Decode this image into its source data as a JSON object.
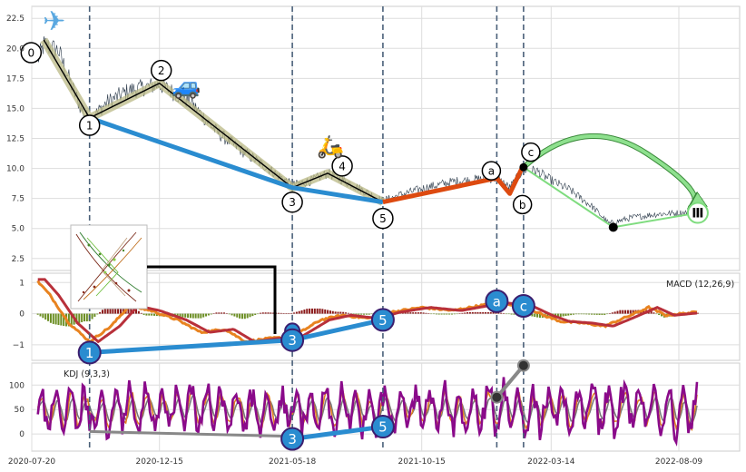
{
  "chart_data": [
    {
      "type": "line",
      "panel": "price",
      "grid": true,
      "x_ticks": [
        "2020-07-20",
        "2020-12-15",
        "2021-05-18",
        "2021-10-15",
        "2022-03-14",
        "2022-08-09"
      ],
      "y_ticks": [
        "2.5",
        "5.0",
        "7.5",
        "10.0",
        "12.5",
        "15.0",
        "17.5",
        "20.0",
        "22.5"
      ],
      "ylim": [
        1.5,
        23.5
      ],
      "start_date": "2020-07-20",
      "end_date": "2022-08-31",
      "marker_dates": [
        "2020-09-25",
        "2021-05-18",
        "2021-08-31",
        "2022-01-10",
        "2022-02-10"
      ],
      "price_keypoints": [
        [
          "2020-07-27",
          19.0
        ],
        [
          "2020-08-03",
          20.3
        ],
        [
          "2020-08-20",
          19.8
        ],
        [
          "2020-09-01",
          17.5
        ],
        [
          "2020-09-15",
          15.0
        ],
        [
          "2020-09-25",
          14.0
        ],
        [
          "2020-10-15",
          15.5
        ],
        [
          "2020-11-10",
          16.5
        ],
        [
          "2020-12-15",
          17.0
        ],
        [
          "2021-01-20",
          15.5
        ],
        [
          "2021-02-20",
          13.0
        ],
        [
          "2021-03-20",
          11.5
        ],
        [
          "2021-04-20",
          10.0
        ],
        [
          "2021-05-18",
          8.6
        ],
        [
          "2021-06-10",
          9.0
        ],
        [
          "2021-06-28",
          9.6
        ],
        [
          "2021-07-25",
          8.7
        ],
        [
          "2021-08-31",
          7.3
        ],
        [
          "2021-09-20",
          7.8
        ],
        [
          "2021-10-20",
          8.4
        ],
        [
          "2021-11-20",
          8.9
        ],
        [
          "2021-12-20",
          9.1
        ],
        [
          "2022-01-10",
          9.2
        ],
        [
          "2022-01-25",
          8.4
        ],
        [
          "2022-02-10",
          9.9
        ],
        [
          "2022-02-25",
          9.8
        ],
        [
          "2022-03-14",
          9.0
        ],
        [
          "2022-04-05",
          8.2
        ],
        [
          "2022-05-01",
          6.8
        ],
        [
          "2022-05-20",
          5.4
        ],
        [
          "2022-06-15",
          5.9
        ],
        [
          "2022-07-15",
          6.2
        ],
        [
          "2022-08-15",
          6.3
        ],
        [
          "2022-08-31",
          6.5
        ]
      ],
      "waves": [
        {
          "label": "0",
          "date": "2020-08-03",
          "value": 20.7
        },
        {
          "label": "1",
          "date": "2020-09-25",
          "value": 14.2
        },
        {
          "label": "2",
          "date": "2020-12-15",
          "value": 17.1
        },
        {
          "label": "3",
          "date": "2021-05-18",
          "value": 8.4
        },
        {
          "label": "4",
          "date": "2021-06-28",
          "value": 9.6
        },
        {
          "label": "5",
          "date": "2021-08-31",
          "value": 7.2
        },
        {
          "label": "a",
          "date": "2022-01-10",
          "value": 9.2
        },
        {
          "label": "b",
          "date": "2022-01-25",
          "value": 7.9
        },
        {
          "label": "c",
          "date": "2022-02-10",
          "value": 10.3
        }
      ],
      "impulse_path": [
        [
          "2020-08-03",
          20.7
        ],
        [
          "2020-09-25",
          14.2
        ],
        [
          "2020-12-15",
          17.1
        ],
        [
          "2021-05-18",
          8.4
        ],
        [
          "2021-06-28",
          9.6
        ],
        [
          "2021-08-31",
          7.2
        ]
      ],
      "trend_line": [
        [
          "2020-09-25",
          14.2
        ],
        [
          "2021-05-18",
          8.4
        ],
        [
          "2021-08-31",
          7.2
        ]
      ],
      "corrective_path": [
        [
          "2021-08-31",
          7.2
        ],
        [
          "2022-01-10",
          9.2
        ],
        [
          "2022-01-25",
          7.9
        ],
        [
          "2022-02-10",
          10.3
        ]
      ],
      "projection": {
        "from": [
          "2022-02-10",
          10.1
        ],
        "low": [
          "2022-05-25",
          5.1
        ],
        "to": [
          "2022-08-31",
          6.3
        ],
        "end_label": "Ⅲ"
      },
      "icons": [
        {
          "name": "airplane-icon",
          "glyph": "✈",
          "color": "#5aa8e0"
        },
        {
          "name": "car-icon",
          "glyph": "🚙",
          "color": "#2e7fd8"
        },
        {
          "name": "scooter-icon",
          "glyph": "🛵",
          "color": "#e07a2e"
        }
      ]
    },
    {
      "type": "line",
      "panel": "macd",
      "title": "MACD (12,26,9)",
      "y_ticks": [
        "1",
        "0",
        "−1"
      ],
      "ylim": [
        -1.5,
        1.3
      ],
      "dif_keypoints": [
        [
          "2020-07-25",
          1.1
        ],
        [
          "2020-08-10",
          0.6
        ],
        [
          "2020-09-01",
          -0.3
        ],
        [
          "2020-09-25",
          -0.9
        ],
        [
          "2020-10-20",
          -0.4
        ],
        [
          "2020-11-10",
          0.25
        ],
        [
          "2020-12-05",
          0.1
        ],
        [
          "2021-01-05",
          -0.2
        ],
        [
          "2021-02-01",
          -0.6
        ],
        [
          "2021-03-01",
          -0.5
        ],
        [
          "2021-03-25",
          -0.9
        ],
        [
          "2021-04-20",
          -0.8
        ],
        [
          "2021-05-18",
          -0.75
        ],
        [
          "2021-06-20",
          -0.2
        ],
        [
          "2021-07-15",
          -0.05
        ],
        [
          "2021-08-15",
          -0.15
        ],
        [
          "2021-09-10",
          0.05
        ],
        [
          "2021-10-15",
          0.2
        ],
        [
          "2021-11-20",
          0.1
        ],
        [
          "2021-12-20",
          0.25
        ],
        [
          "2022-01-10",
          0.35
        ],
        [
          "2022-02-10",
          0.25
        ],
        [
          "2022-03-05",
          -0.05
        ],
        [
          "2022-03-25",
          -0.25
        ],
        [
          "2022-04-20",
          -0.3
        ],
        [
          "2022-05-15",
          -0.4
        ],
        [
          "2022-06-10",
          -0.1
        ],
        [
          "2022-07-05",
          0.2
        ],
        [
          "2022-07-25",
          -0.05
        ],
        [
          "2022-08-31",
          0.05
        ]
      ],
      "waves": [
        {
          "label": "1",
          "date": "2020-09-25",
          "value": -1.25
        },
        {
          "label": "3",
          "date": "2021-05-18",
          "value": -0.85
        },
        {
          "label": "5",
          "date": "2021-08-31",
          "value": -0.2
        },
        {
          "label": "a",
          "date": "2022-01-10",
          "value": 0.4
        },
        {
          "label": "c",
          "date": "2022-02-10",
          "value": 0.25
        }
      ],
      "extra_point": {
        "date": "2021-05-18",
        "value": -0.55
      }
    },
    {
      "type": "line",
      "panel": "kdj",
      "title": "KDJ (9,3,3)",
      "y_ticks": [
        "100",
        "50",
        "0"
      ],
      "ylim": [
        -35,
        145
      ],
      "waves": [
        {
          "label": "3",
          "date": "2021-05-18",
          "value": -10
        },
        {
          "label": "5",
          "date": "2021-08-31",
          "value": 15
        }
      ],
      "grey_path": [
        [
          "2020-09-25",
          5
        ],
        [
          "2021-05-18",
          -5
        ]
      ],
      "grey_upper": [
        [
          "2022-01-10",
          75
        ],
        [
          "2022-02-10",
          140
        ]
      ]
    }
  ],
  "colors": {
    "price_line": "#2b3a4a",
    "impulse": "#000000",
    "impulse_halo": "#b9b884",
    "trend": "#2a8cd0",
    "corrective": "#dd4a10",
    "projection": "#7fdc7f",
    "projection_arrow": "#8ee08e",
    "marker_dash": "#4a6079",
    "macd_fast": "#e88320",
    "macd_slow": "#b8303a",
    "macd_hist_pos": "#8b1a1a",
    "macd_hist_neg": "#6b8e23",
    "kdj_j": "#8a0a8a",
    "kdj_k": "#e08020",
    "kdj_d": "#7a7a7a",
    "circle_blue": "#2a8cd0",
    "circle_stroke": "#3b1e6e",
    "grid": "#dddddd"
  }
}
